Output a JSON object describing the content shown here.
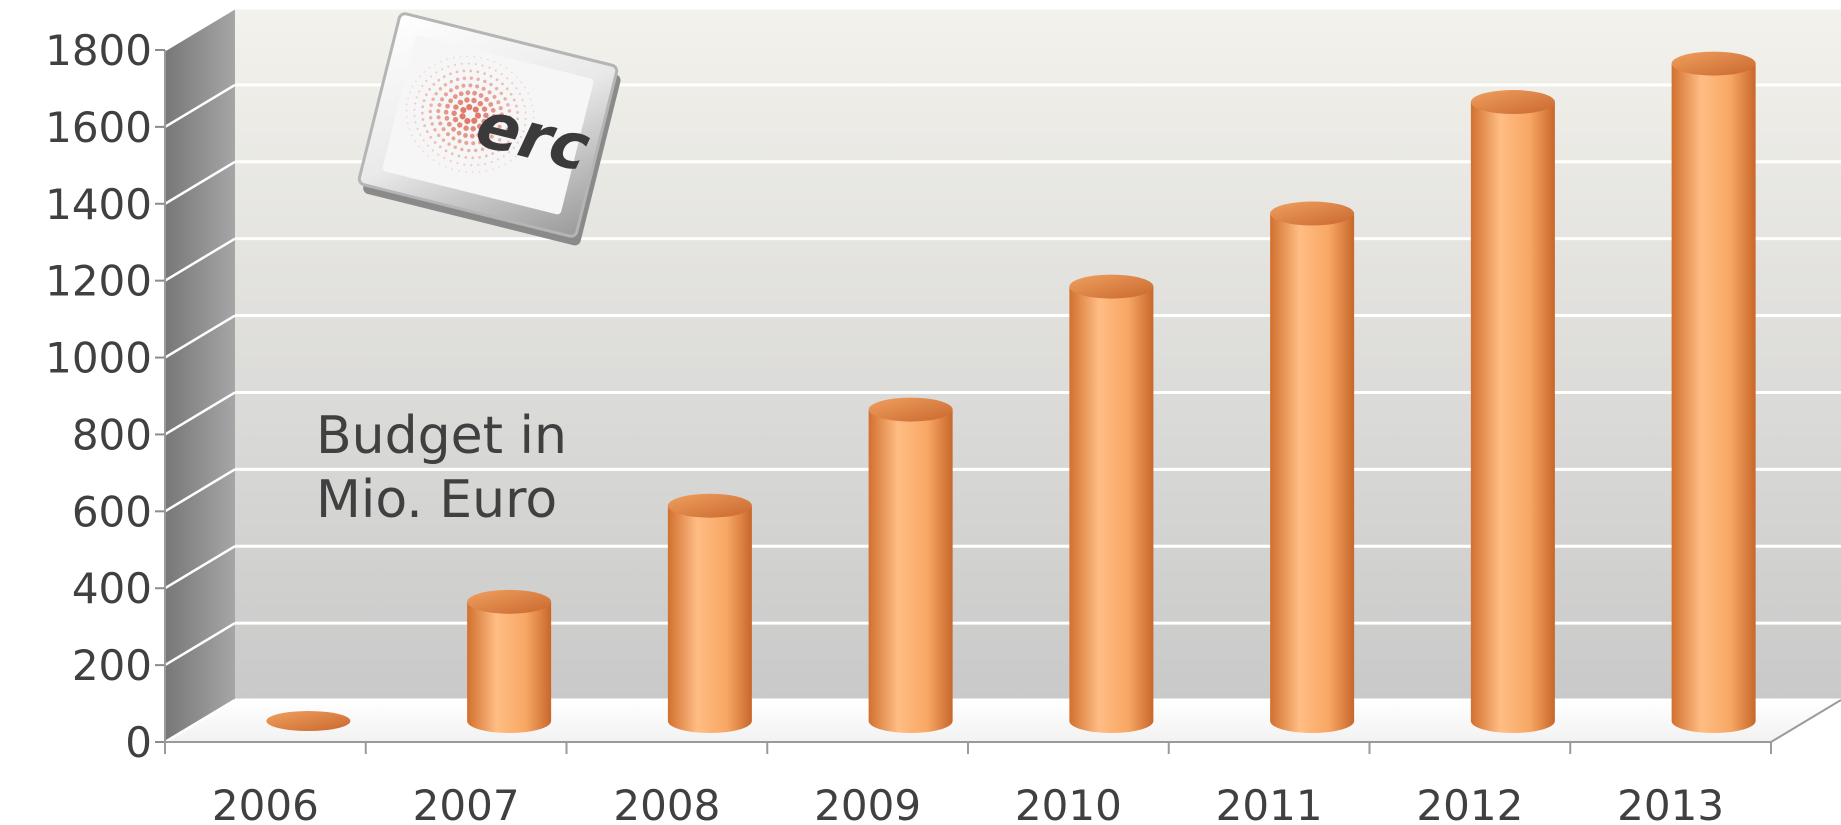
{
  "chart_data": {
    "type": "bar",
    "style": "3d-cylinder",
    "categories": [
      "2006",
      "2007",
      "2008",
      "2009",
      "2010",
      "2011",
      "2012",
      "2013"
    ],
    "values": [
      0,
      310,
      560,
      810,
      1130,
      1320,
      1610,
      1710
    ],
    "ylim": [
      0,
      1800
    ],
    "yticks": [
      0,
      200,
      400,
      600,
      800,
      1000,
      1200,
      1400,
      1600,
      1800
    ],
    "annotation_lines": [
      "Budget in",
      "Mio. Euro"
    ],
    "grid": true,
    "legend": "none",
    "colors": {
      "bar": "#f7a868",
      "bar_dark": "#d8783a",
      "bar_light": "#ffc48e",
      "top": "#e08a4a",
      "grid": "#ffffff",
      "wall_top": "#f2f1ec",
      "wall_bottom": "#cfcfcf",
      "side_wall": "#8c8c8c",
      "text": "#404040"
    }
  },
  "logo": {
    "text": "erc",
    "icon": "erc-logo-icon"
  }
}
